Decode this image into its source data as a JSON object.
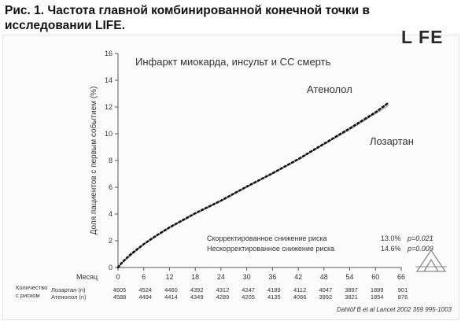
{
  "figure": {
    "title_line1": "Рис. 1. Частота главной комбинированной конечной точки в",
    "title_line2": "исследовании LIFE.",
    "logo": "L FE"
  },
  "chart_data": {
    "type": "line",
    "subtitle": "Инфаркт миокарда, инсульт и СС смерть",
    "ylabel": "Доля пациентов с первым событием (%)",
    "xlabel": "Месяц",
    "xlim": [
      0,
      66
    ],
    "ylim": [
      0,
      16
    ],
    "x_ticks": [
      0,
      6,
      12,
      18,
      24,
      30,
      36,
      42,
      48,
      54,
      60,
      66
    ],
    "y_ticks": [
      0,
      2,
      4,
      6,
      8,
      10,
      12,
      14,
      16
    ],
    "x_tick_labels": [
      "0",
      "6",
      "12",
      "18",
      "24",
      "30",
      "36",
      "42",
      "48",
      "54",
      "60",
      "66"
    ],
    "y_tick_labels": [
      "0",
      "2",
      "4",
      "6",
      "8",
      "10",
      "12",
      "14",
      "16"
    ],
    "series": [
      {
        "name": "Атенолол",
        "style": "solid",
        "color": "#9a9a9a",
        "x": [
          0,
          1,
          3,
          6,
          9,
          12,
          18,
          24,
          30,
          36,
          42,
          48,
          54,
          60,
          63
        ],
        "y": [
          0,
          0.35,
          0.9,
          1.7,
          2.35,
          2.95,
          4.0,
          4.95,
          6.0,
          7.0,
          8.05,
          9.2,
          10.3,
          11.5,
          12.1
        ]
      },
      {
        "name": "Лозартан",
        "style": "dotted",
        "color": "#111111",
        "x": [
          0,
          1,
          3,
          6,
          9,
          12,
          18,
          24,
          30,
          36,
          42,
          48,
          54,
          60,
          63
        ],
        "y": [
          0,
          0.4,
          1.0,
          1.75,
          2.4,
          3.0,
          4.05,
          5.0,
          6.05,
          7.05,
          8.1,
          9.25,
          10.4,
          11.6,
          12.3
        ]
      }
    ],
    "annotations": {
      "adjusted_label": "Скорректированное снижение риска",
      "adjusted_value": "13.0%",
      "adjusted_p": "p=0.021",
      "unadjusted_label": "Нескорректированное снижение риска",
      "unadjusted_value": "14.6%",
      "unadjusted_p": "p=0.009"
    },
    "risk_table": {
      "header_line1": "Количество",
      "header_line2": "с риском",
      "rows": [
        {
          "label": "Лозартан (n)",
          "values": [
            "4605",
            "4524",
            "4460",
            "4392",
            "4312",
            "4247",
            "4189",
            "4112",
            "4047",
            "3897",
            "1889",
            "901"
          ]
        },
        {
          "label": "Атенолол (n)",
          "values": [
            "4588",
            "4494",
            "4414",
            "4349",
            "4289",
            "4205",
            "4135",
            "4066",
            "3992",
            "3821",
            "1854",
            "876"
          ]
        }
      ]
    },
    "citation": "Dahlöf B et al  Lancet 2002  359  995-1003"
  }
}
